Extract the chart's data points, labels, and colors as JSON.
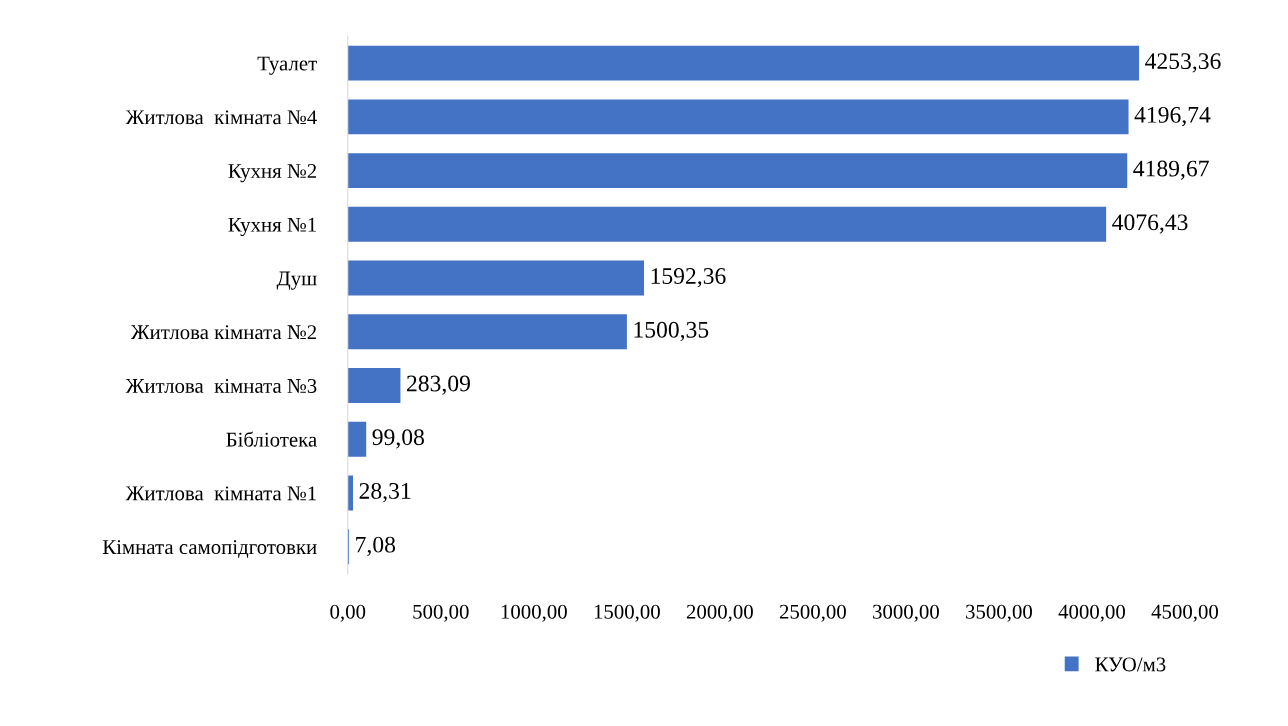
{
  "chart_data": {
    "type": "bar",
    "orientation": "horizontal",
    "categories": [
      "Туалет",
      "Житлова  кімната №4",
      "Кухня №2",
      "Кухня №1",
      "Душ",
      "Житлова кімната №2",
      "Житлова  кімната №3",
      "Бібліотека",
      "Житлова  кімната №1",
      "Кімната самопідготовки"
    ],
    "series": [
      {
        "name": "КУО/м3",
        "color": "#4472c4",
        "values": [
          4253.36,
          4196.74,
          4189.67,
          4076.43,
          1592.36,
          1500.35,
          283.09,
          99.08,
          28.31,
          7.08
        ],
        "value_labels": [
          "4253,36",
          "4196,74",
          "4189,67",
          "4076,43",
          "1592,36",
          "1500,35",
          "283,09",
          "99,08",
          "28,31",
          "7,08"
        ]
      }
    ],
    "xlim": [
      0,
      4500
    ],
    "xticks": [
      {
        "value": 0,
        "label": "0,00"
      },
      {
        "value": 500,
        "label": "500,00"
      },
      {
        "value": 1000,
        "label": "1000,00"
      },
      {
        "value": 1500,
        "label": "1500,00"
      },
      {
        "value": 2000,
        "label": "2000,00"
      },
      {
        "value": 2500,
        "label": "2500,00"
      },
      {
        "value": 3000,
        "label": "3000,00"
      },
      {
        "value": 3500,
        "label": "3500,00"
      },
      {
        "value": 4000,
        "label": "4000,00"
      },
      {
        "value": 4500,
        "label": "4500,00"
      }
    ],
    "grid": false,
    "legend": "bottom right"
  }
}
